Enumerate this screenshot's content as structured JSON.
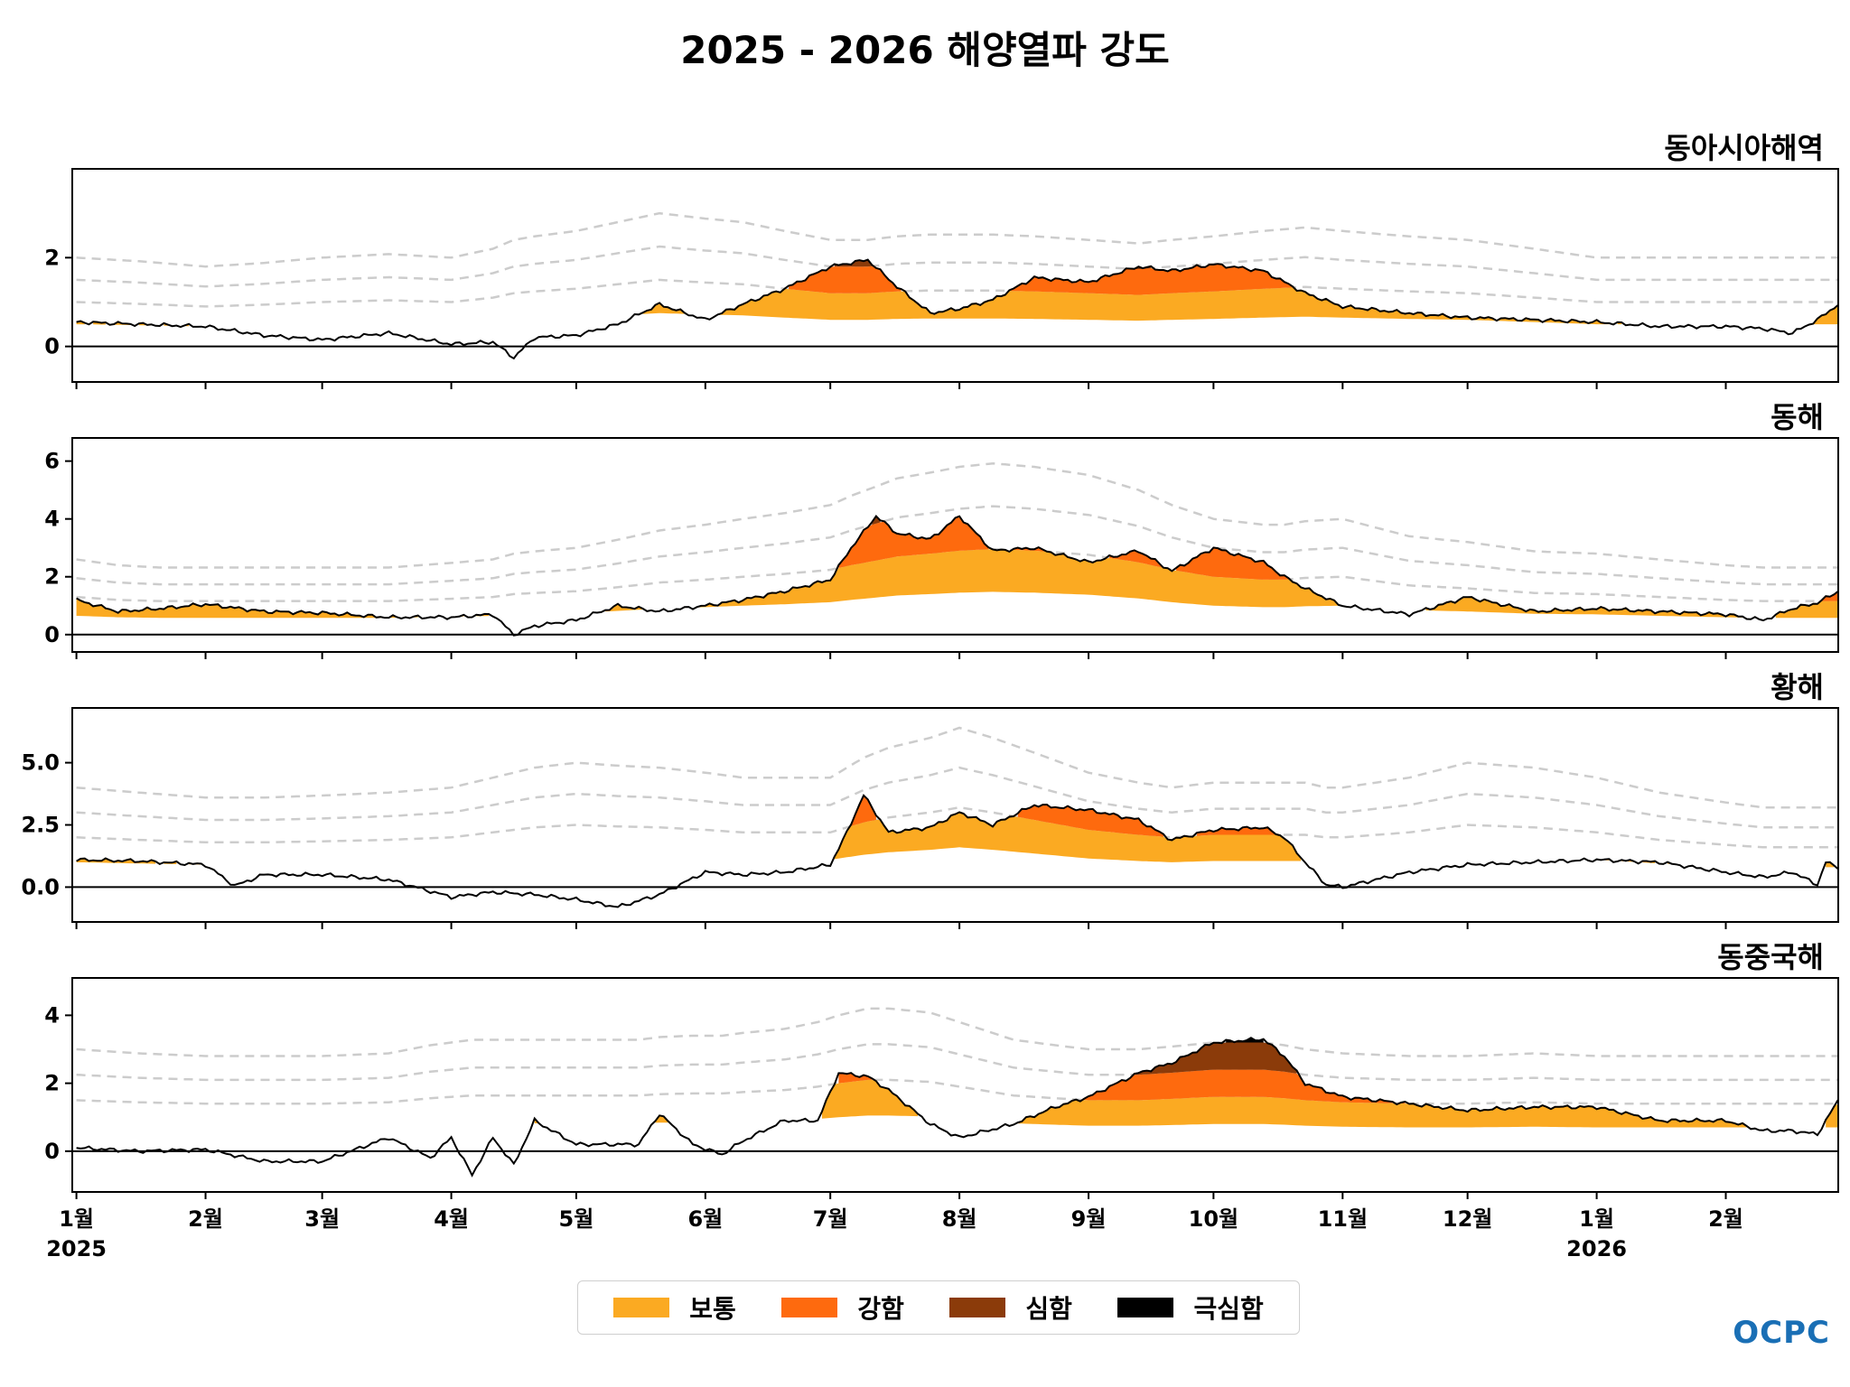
{
  "title": "2025 - 2026 해양열파 강도",
  "logo_text": "OCPC",
  "colors": {
    "moderate": "#FBAA22",
    "strong": "#FE6A0E",
    "severe": "#8B3B0A",
    "extreme": "#000000",
    "threshold": "#cccccc",
    "line": "#000000"
  },
  "legend": [
    {
      "label": "보통",
      "color": "#FBAA22"
    },
    {
      "label": "강함",
      "color": "#FE6A0E"
    },
    {
      "label": "심함",
      "color": "#8B3B0A"
    },
    {
      "label": "극심함",
      "color": "#000000"
    }
  ],
  "x_axis": {
    "ticks": [
      {
        "label": "1월",
        "sub": "2025",
        "day": 0
      },
      {
        "label": "2월",
        "sub": "",
        "day": 31
      },
      {
        "label": "3월",
        "sub": "",
        "day": 59
      },
      {
        "label": "4월",
        "sub": "",
        "day": 90
      },
      {
        "label": "5월",
        "sub": "",
        "day": 120
      },
      {
        "label": "6월",
        "sub": "",
        "day": 151
      },
      {
        "label": "7월",
        "sub": "",
        "day": 181
      },
      {
        "label": "8월",
        "sub": "",
        "day": 212
      },
      {
        "label": "9월",
        "sub": "",
        "day": 243
      },
      {
        "label": "10월",
        "sub": "",
        "day": 273
      },
      {
        "label": "11월",
        "sub": "",
        "day": 304
      },
      {
        "label": "12월",
        "sub": "",
        "day": 334
      },
      {
        "label": "1월",
        "sub": "2026",
        "day": 365
      },
      {
        "label": "2월",
        "sub": "",
        "day": 396
      }
    ],
    "range": [
      -1,
      423
    ]
  },
  "chart_data": [
    {
      "type": "area",
      "title": "동아시아해역",
      "ylim": [
        -0.8,
        4.0
      ],
      "yticks": [
        {
          "v": 0,
          "label": "0"
        },
        {
          "v": 2,
          "label": "2"
        }
      ],
      "x": [
        0,
        15,
        31,
        45,
        59,
        75,
        90,
        100,
        105,
        110,
        120,
        130,
        140,
        151,
        160,
        170,
        181,
        190,
        197,
        205,
        212,
        220,
        230,
        243,
        255,
        263,
        273,
        285,
        295,
        304,
        320,
        334,
        350,
        365,
        380,
        396,
        405,
        412,
        418,
        423
      ],
      "series": [
        {
          "name": "anomaly",
          "values": [
            0.55,
            0.5,
            0.45,
            0.25,
            0.15,
            0.3,
            0.05,
            0.1,
            -0.25,
            0.2,
            0.25,
            0.5,
            0.95,
            0.6,
            0.95,
            1.3,
            1.8,
            1.95,
            1.35,
            0.75,
            0.85,
            1.05,
            1.55,
            1.45,
            1.8,
            1.7,
            1.85,
            1.7,
            1.2,
            0.9,
            0.75,
            0.65,
            0.6,
            0.55,
            0.45,
            0.45,
            0.4,
            0.3,
            0.6,
            0.95
          ]
        },
        {
          "name": "clim_p90",
          "values": [
            0.5,
            0.48,
            0.45,
            0.47,
            0.5,
            0.52,
            0.5,
            0.55,
            0.6,
            0.62,
            0.65,
            0.7,
            0.75,
            0.72,
            0.7,
            0.65,
            0.6,
            0.6,
            0.62,
            0.63,
            0.63,
            0.63,
            0.62,
            0.6,
            0.58,
            0.6,
            0.62,
            0.65,
            0.67,
            0.65,
            0.62,
            0.6,
            0.55,
            0.5,
            0.5,
            0.5,
            0.5,
            0.5,
            0.5,
            0.5
          ]
        }
      ],
      "threshold_multiples": [
        2,
        3,
        4
      ]
    },
    {
      "type": "area",
      "title": "동해",
      "ylim": [
        -0.6,
        6.8
      ],
      "yticks": [
        {
          "v": 0,
          "label": "0"
        },
        {
          "v": 2,
          "label": "2"
        },
        {
          "v": 4,
          "label": "4"
        },
        {
          "v": 6,
          "label": "6"
        }
      ],
      "x": [
        0,
        10,
        20,
        31,
        45,
        59,
        75,
        90,
        100,
        105,
        110,
        120,
        130,
        140,
        151,
        160,
        170,
        181,
        186,
        192,
        197,
        205,
        212,
        220,
        230,
        243,
        255,
        263,
        273,
        285,
        290,
        295,
        304,
        320,
        334,
        350,
        365,
        380,
        396,
        405,
        412,
        418,
        423
      ],
      "series": [
        {
          "name": "anomaly",
          "values": [
            1.2,
            0.8,
            0.9,
            1.05,
            0.8,
            0.75,
            0.6,
            0.6,
            0.7,
            0.0,
            0.3,
            0.5,
            1.0,
            0.8,
            1.0,
            1.2,
            1.5,
            1.9,
            3.0,
            4.1,
            3.5,
            3.3,
            4.1,
            2.9,
            3.0,
            2.5,
            2.9,
            2.2,
            3.0,
            2.5,
            2.0,
            1.6,
            1.0,
            0.7,
            1.3,
            0.8,
            0.9,
            0.8,
            0.7,
            0.5,
            0.9,
            1.1,
            1.5
          ]
        },
        {
          "name": "clim_p90",
          "values": [
            0.65,
            0.6,
            0.58,
            0.58,
            0.58,
            0.58,
            0.58,
            0.62,
            0.65,
            0.7,
            0.72,
            0.75,
            0.82,
            0.9,
            0.95,
            1.0,
            1.05,
            1.12,
            1.2,
            1.28,
            1.35,
            1.4,
            1.45,
            1.48,
            1.45,
            1.38,
            1.25,
            1.12,
            1.0,
            0.95,
            0.95,
            0.98,
            1.0,
            0.85,
            0.8,
            0.72,
            0.7,
            0.65,
            0.6,
            0.58,
            0.58,
            0.58,
            0.58
          ]
        }
      ],
      "threshold_multiples": [
        2,
        3,
        4
      ]
    },
    {
      "type": "area",
      "title": "황해",
      "ylim": [
        -1.4,
        7.2
      ],
      "yticks": [
        {
          "v": 0,
          "label": "0.0"
        },
        {
          "v": 2.5,
          "label": "2.5"
        },
        {
          "v": 5,
          "label": "5.0"
        }
      ],
      "x": [
        0,
        15,
        31,
        38,
        45,
        59,
        75,
        90,
        100,
        110,
        120,
        130,
        140,
        151,
        160,
        170,
        181,
        185,
        189,
        195,
        205,
        212,
        220,
        230,
        243,
        255,
        263,
        273,
        285,
        290,
        295,
        300,
        304,
        320,
        334,
        350,
        365,
        380,
        396,
        405,
        412,
        418,
        420,
        423
      ],
      "series": [
        {
          "name": "anomaly",
          "values": [
            1.1,
            1.05,
            0.9,
            0.05,
            0.5,
            0.5,
            0.3,
            -0.4,
            -0.2,
            -0.3,
            -0.5,
            -0.8,
            -0.3,
            0.6,
            0.5,
            0.6,
            0.9,
            2.2,
            3.7,
            2.2,
            2.4,
            3.0,
            2.5,
            3.3,
            3.1,
            2.7,
            1.9,
            2.3,
            2.4,
            2.0,
            1.0,
            0.1,
            0.0,
            0.6,
            0.9,
            1.0,
            1.1,
            1.0,
            0.6,
            0.4,
            0.6,
            0.1,
            1.0,
            0.8
          ]
        },
        {
          "name": "clim_p90",
          "values": [
            1.0,
            0.95,
            0.9,
            0.9,
            0.9,
            0.92,
            0.95,
            1.0,
            1.1,
            1.2,
            1.25,
            1.22,
            1.2,
            1.15,
            1.1,
            1.1,
            1.1,
            1.2,
            1.3,
            1.4,
            1.5,
            1.6,
            1.5,
            1.35,
            1.15,
            1.05,
            1.0,
            1.05,
            1.05,
            1.05,
            1.05,
            1.0,
            1.0,
            1.1,
            1.25,
            1.2,
            1.1,
            0.95,
            0.85,
            0.8,
            0.8,
            0.8,
            0.8,
            0.8
          ]
        }
      ],
      "threshold_multiples": [
        2,
        3,
        4
      ]
    },
    {
      "type": "area",
      "title": "동중국해",
      "ylim": [
        -1.2,
        5.1
      ],
      "yticks": [
        {
          "v": 0,
          "label": "0"
        },
        {
          "v": 2,
          "label": "2"
        },
        {
          "v": 4,
          "label": "4"
        }
      ],
      "x": [
        0,
        15,
        31,
        45,
        59,
        75,
        85,
        90,
        95,
        100,
        105,
        110,
        120,
        135,
        140,
        148,
        155,
        160,
        170,
        178,
        183,
        190,
        195,
        205,
        212,
        225,
        235,
        243,
        255,
        263,
        273,
        285,
        290,
        295,
        304,
        320,
        334,
        350,
        365,
        380,
        396,
        405,
        412,
        418,
        423
      ],
      "series": [
        {
          "name": "anomaly",
          "values": [
            0.1,
            0.0,
            0.05,
            -0.3,
            -0.3,
            0.4,
            -0.2,
            0.4,
            -0.7,
            0.4,
            -0.4,
            0.9,
            0.2,
            0.2,
            1.1,
            0.2,
            -0.1,
            0.3,
            0.9,
            0.9,
            2.3,
            2.2,
            1.8,
            0.8,
            0.4,
            0.8,
            1.3,
            1.6,
            2.3,
            2.6,
            3.2,
            3.3,
            2.8,
            2.0,
            1.6,
            1.4,
            1.2,
            1.3,
            1.3,
            0.9,
            0.9,
            0.6,
            0.6,
            0.5,
            1.5
          ]
        },
        {
          "name": "clim_p90",
          "values": [
            0.75,
            0.72,
            0.7,
            0.7,
            0.7,
            0.72,
            0.78,
            0.8,
            0.82,
            0.82,
            0.82,
            0.82,
            0.82,
            0.82,
            0.84,
            0.85,
            0.85,
            0.87,
            0.9,
            0.95,
            1.0,
            1.05,
            1.05,
            1.02,
            0.95,
            0.82,
            0.78,
            0.75,
            0.75,
            0.77,
            0.8,
            0.8,
            0.78,
            0.75,
            0.72,
            0.7,
            0.7,
            0.72,
            0.7,
            0.7,
            0.7,
            0.7,
            0.7,
            0.7,
            0.7
          ]
        }
      ],
      "threshold_multiples": [
        2,
        3,
        4
      ]
    }
  ]
}
